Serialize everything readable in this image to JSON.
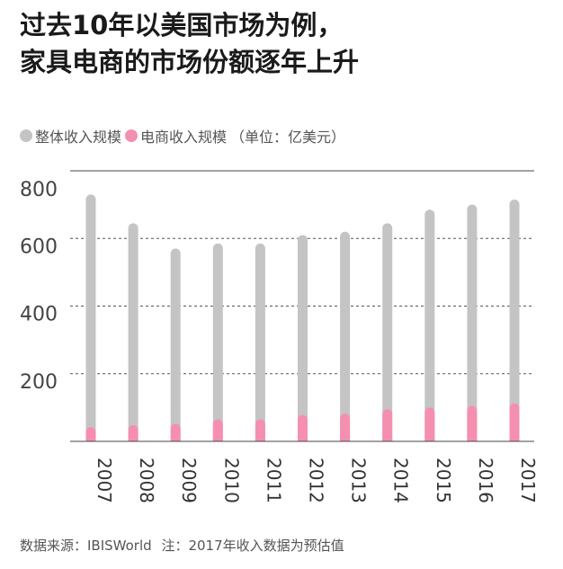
{
  "title_lines": [
    "过去10年以美国市场为例，",
    "家具电商的市场份额逐年上升"
  ],
  "legend": {
    "items": [
      {
        "label": "整体收入规模",
        "color": "#c4c4c4"
      },
      {
        "label": "电商收入规模",
        "color": "#f58fb0"
      }
    ],
    "unit_note": "（单位：亿美元）"
  },
  "source": {
    "label": "数据来源：IBISWorld",
    "note": "注：2017年收入数据为预估值"
  },
  "chart_data": {
    "type": "bar",
    "categories": [
      "2007",
      "2008",
      "2009",
      "2010",
      "2011",
      "2012",
      "2013",
      "2014",
      "2015",
      "2016",
      "2017"
    ],
    "series": [
      {
        "name": "整体收入规模",
        "values": [
          730,
          645,
          570,
          585,
          585,
          610,
          620,
          645,
          685,
          700,
          715
        ],
        "color": "#c4c4c4"
      },
      {
        "name": "电商收入规模",
        "values": [
          42,
          48,
          52,
          65,
          65,
          78,
          82,
          95,
          100,
          105,
          112
        ],
        "color": "#f58fb0"
      }
    ],
    "yticks": [
      800,
      600,
      400,
      200
    ],
    "ylim": [
      0,
      800
    ],
    "grid": true
  }
}
